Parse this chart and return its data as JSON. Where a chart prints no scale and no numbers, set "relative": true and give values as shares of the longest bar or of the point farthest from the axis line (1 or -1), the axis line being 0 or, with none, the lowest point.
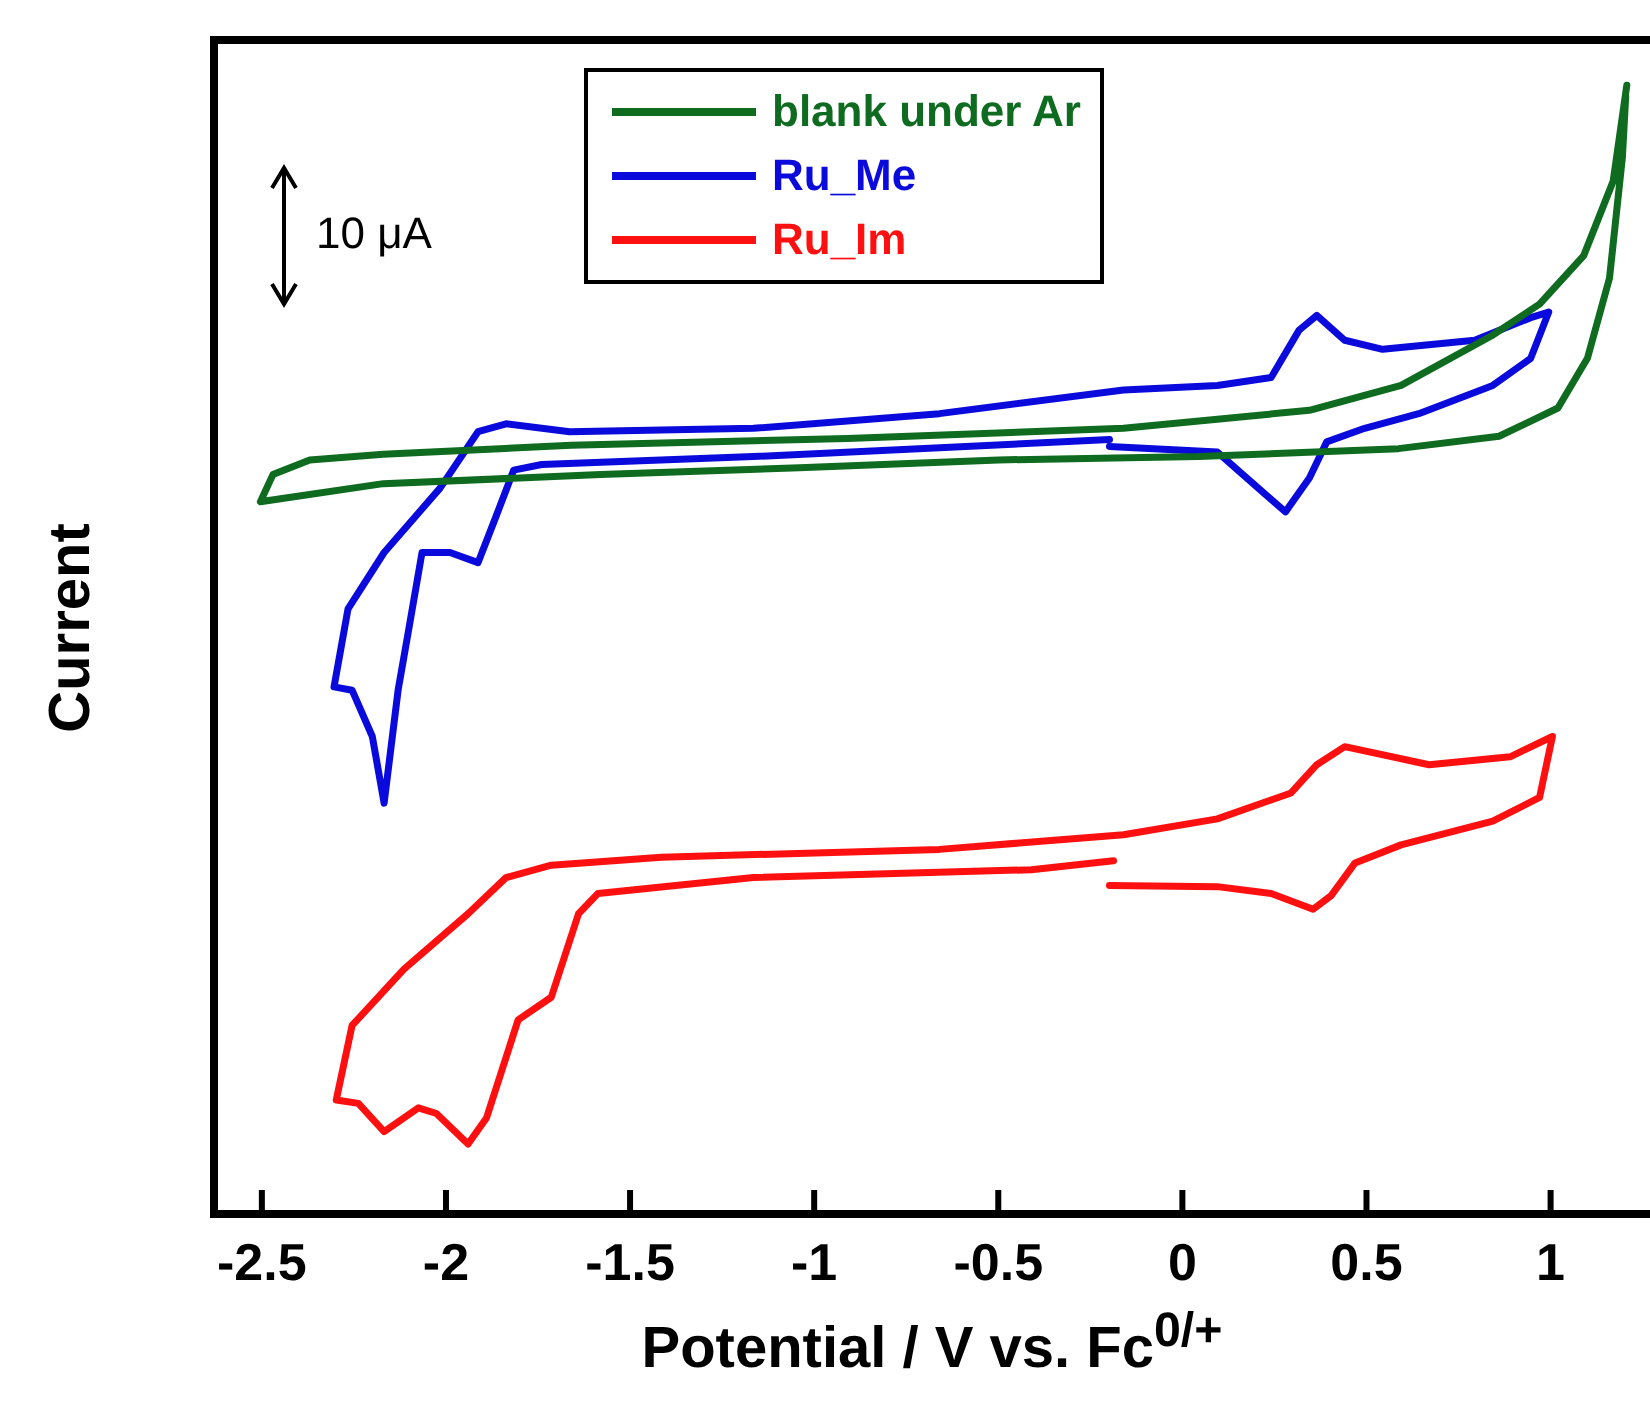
{
  "chart_data": {
    "type": "line",
    "relative": true,
    "xlabel": "Potential / V vs. Fc$^{0/+}$",
    "ylabel": "Current",
    "xlim": [
      -2.63,
      1.27
    ],
    "xticks": [
      -2.5,
      -2,
      -1.5,
      -1,
      -0.5,
      0,
      0.5,
      1
    ],
    "grid": false,
    "legend": "top",
    "marker": "none",
    "line_style": "solid",
    "annotations": [
      "10 μA"
    ],
    "series": [
      {
        "name": "blank under Ar",
        "color": "#0f6b1f",
        "x": [
          1.207,
          1.17,
          1.09,
          0.97,
          0.84,
          0.594,
          0.345,
          -0.16,
          -0.91,
          -1.66,
          -2.17,
          -2.37,
          -2.47,
          -2.504,
          -2.44,
          -2.17,
          -1.58,
          -1.04,
          -0.5,
          0.045,
          0.587,
          0.86,
          1.02,
          1.1,
          1.16,
          1.195,
          1.204
        ],
        "values": [
          1.0,
          0.915,
          0.849,
          0.806,
          0.778,
          0.734,
          0.712,
          0.696,
          0.687,
          0.681,
          0.673,
          0.668,
          0.655,
          0.631,
          0.634,
          0.647,
          0.655,
          0.661,
          0.668,
          0.671,
          0.678,
          0.689,
          0.714,
          0.758,
          0.829,
          0.936,
          0.99
        ]
      },
      {
        "name": "Ru_Me",
        "color": "#0a0adc",
        "x": [
          -0.198,
          0.095,
          0.22,
          0.28,
          0.345,
          0.392,
          0.495,
          0.642,
          0.843,
          0.946,
          0.995,
          0.946,
          0.794,
          0.544,
          0.441,
          0.365,
          0.317,
          0.241,
          0.095,
          -0.16,
          -0.66,
          -1.165,
          -1.664,
          -1.837,
          -1.913,
          -2.016,
          -2.168,
          -2.266,
          -2.304,
          -2.255,
          -2.2,
          -2.168,
          -2.13,
          -2.1,
          -2.065,
          -1.989,
          -1.913,
          -1.864,
          -1.816,
          -1.74,
          -1.165,
          -0.198
        ],
        "values": [
          0.68,
          0.675,
          0.639,
          0.622,
          0.652,
          0.684,
          0.696,
          0.709,
          0.734,
          0.758,
          0.799,
          0.794,
          0.774,
          0.766,
          0.774,
          0.796,
          0.783,
          0.741,
          0.734,
          0.73,
          0.709,
          0.696,
          0.693,
          0.7,
          0.693,
          0.643,
          0.586,
          0.536,
          0.467,
          0.464,
          0.423,
          0.364,
          0.464,
          0.52,
          0.586,
          0.586,
          0.577,
          0.618,
          0.659,
          0.664,
          0.671,
          0.686
        ]
      },
      {
        "name": "Ru_Im",
        "color": "#ff1010",
        "x": [
          -0.198,
          0.095,
          0.241,
          0.355,
          0.404,
          0.469,
          0.594,
          0.843,
          0.97,
          1.005,
          0.89,
          0.67,
          0.441,
          0.365,
          0.295,
          0.095,
          -0.16,
          -0.66,
          -1.415,
          -1.714,
          -1.837,
          -1.94,
          -2.114,
          -2.255,
          -2.298,
          -2.238,
          -2.168,
          -2.075,
          -2.026,
          -1.94,
          -1.89,
          -1.804,
          -1.714,
          -1.64,
          -1.587,
          -1.165,
          -0.41,
          -0.187
        ],
        "values": [
          0.291,
          0.29,
          0.284,
          0.27,
          0.282,
          0.311,
          0.327,
          0.348,
          0.369,
          0.423,
          0.405,
          0.398,
          0.414,
          0.398,
          0.373,
          0.35,
          0.336,
          0.323,
          0.316,
          0.309,
          0.298,
          0.266,
          0.217,
          0.167,
          0.101,
          0.098,
          0.073,
          0.094,
          0.089,
          0.062,
          0.085,
          0.172,
          0.192,
          0.266,
          0.284,
          0.298,
          0.305,
          0.313
        ]
      }
    ]
  }
}
